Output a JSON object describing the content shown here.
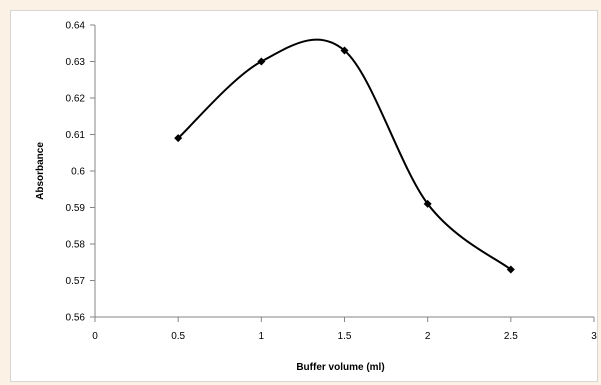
{
  "chart_data": {
    "type": "line",
    "smooth": true,
    "title": "",
    "xlabel": "Buffer volume (ml)",
    "ylabel": "Absorbance",
    "xlim": [
      0,
      3
    ],
    "ylim": [
      0.56,
      0.64
    ],
    "x_ticks": [
      0,
      0.5,
      1,
      1.5,
      2,
      2.5,
      3
    ],
    "x_tick_labels": [
      "0",
      "0.5",
      "1",
      "1.5",
      "2",
      "2.5",
      "3"
    ],
    "y_ticks": [
      0.56,
      0.57,
      0.58,
      0.59,
      0.6,
      0.61,
      0.62,
      0.63,
      0.64
    ],
    "y_tick_labels": [
      "0.56",
      "0.57",
      "0.58",
      "0.59",
      "0.6",
      "0.61",
      "0.62",
      "0.63",
      "0.64"
    ],
    "grid": false,
    "legend": "none",
    "series": [
      {
        "marker": "diamond",
        "color": "#000000",
        "x": [
          0.5,
          1,
          1.5,
          2,
          2.5
        ],
        "y": [
          0.609,
          0.63,
          0.633,
          0.591,
          0.573
        ]
      }
    ]
  }
}
